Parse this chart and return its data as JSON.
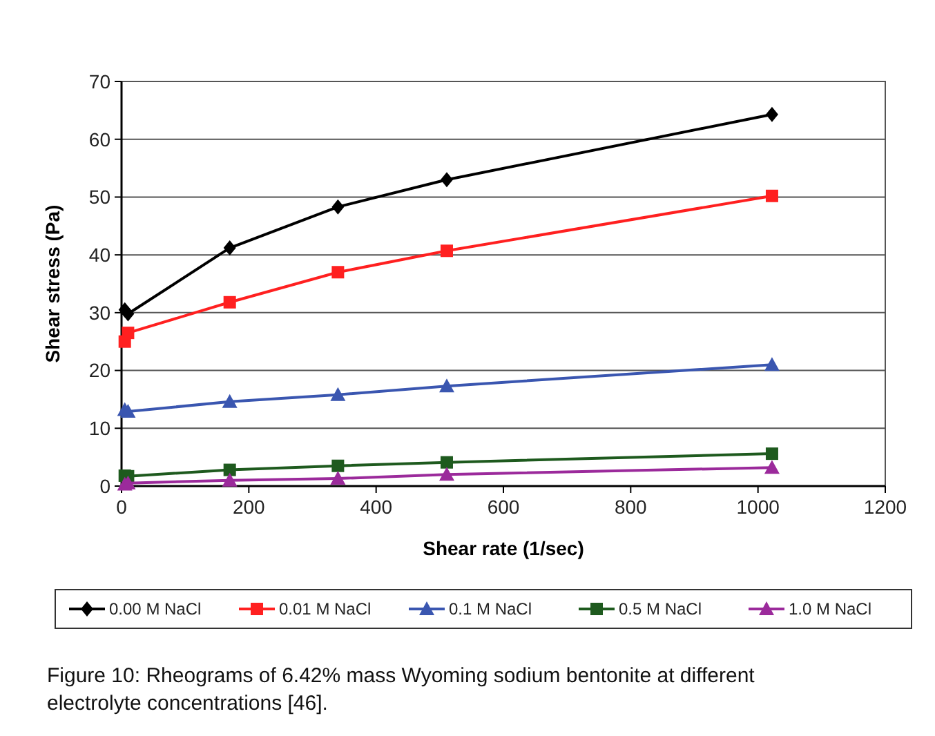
{
  "chart_data": {
    "type": "line",
    "xlabel": "Shear rate (1/sec)",
    "ylabel": "Shear stress (Pa)",
    "x": [
      5.1,
      10.2,
      170,
      340,
      511,
      1022
    ],
    "xlim": [
      0,
      1200
    ],
    "xticks": [
      0,
      200,
      400,
      600,
      800,
      1000,
      1200
    ],
    "ylim": [
      0,
      70
    ],
    "yticks": [
      0,
      10,
      20,
      30,
      40,
      50,
      60,
      70
    ],
    "grid": "y",
    "legend": "bottom",
    "series": [
      {
        "name": "0.00 M NaCl",
        "color": "#000000",
        "marker": "diamond",
        "values": [
          30.5,
          29.8,
          41.2,
          48.3,
          53,
          64.3
        ]
      },
      {
        "name": "0.01 M NaCl",
        "color": "#ff2020",
        "marker": "square",
        "values": [
          25,
          26.5,
          31.8,
          37,
          40.7,
          50.2
        ]
      },
      {
        "name": "0.1 M NaCl",
        "color": "#3a56b0",
        "marker": "triangle",
        "values": [
          13.2,
          12.9,
          14.6,
          15.8,
          17.3,
          21
        ]
      },
      {
        "name": "0.5 M NaCl",
        "color": "#1e5a1e",
        "marker": "square",
        "values": [
          1.8,
          1.7,
          2.8,
          3.5,
          4.1,
          5.6
        ]
      },
      {
        "name": "1.0 M NaCl",
        "color": "#9b2a9b",
        "marker": "triangle",
        "values": [
          0.3,
          0.5,
          1.0,
          1.3,
          2.0,
          3.2
        ]
      }
    ],
    "annotations": [
      "Figure 10: Rheograms of 6.42% mass Wyoming sodium bentonite at different electrolyte concentrations [46]."
    ]
  }
}
